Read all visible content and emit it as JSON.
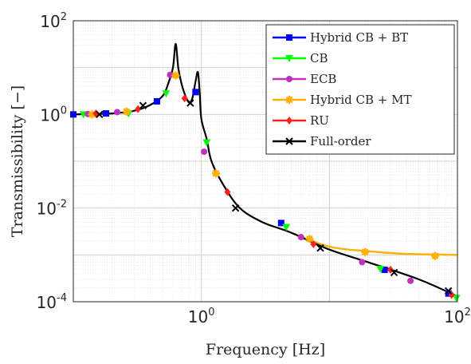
{
  "chart_data": {
    "type": "line",
    "title": "",
    "xlabel": "Frequency [Hz]",
    "ylabel": "Transmissibility [−]",
    "xscale": "log",
    "yscale": "log",
    "xlim": [
      0.1,
      100
    ],
    "ylim": [
      0.0001,
      100
    ],
    "grid": true,
    "minor_grid": true,
    "legend_position": "top-right",
    "x_ticks": [
      {
        "value": 1,
        "base": "10",
        "exp": "0"
      },
      {
        "value": 100,
        "base": "10",
        "exp": "2"
      }
    ],
    "y_ticks": [
      {
        "value": 0.0001,
        "base": "10",
        "exp": "-4"
      },
      {
        "value": 0.01,
        "base": "10",
        "exp": "-2"
      },
      {
        "value": 1,
        "base": "10",
        "exp": "0"
      },
      {
        "value": 100,
        "base": "10",
        "exp": "2"
      }
    ],
    "series": [
      {
        "name": "Hybrid CB + BT",
        "color": "#0000ff",
        "marker": "square",
        "markers": [
          [
            0.1,
            1.0
          ],
          [
            0.18,
            1.05
          ],
          [
            0.45,
            1.9
          ],
          [
            0.9,
            3.0
          ],
          [
            4.2,
            0.0048
          ],
          [
            27,
            0.00048
          ],
          [
            85,
            0.00015
          ]
        ]
      },
      {
        "name": "CB",
        "color": "#00ff00",
        "marker": "triangle-down",
        "markers": [
          [
            0.12,
            1.0
          ],
          [
            0.27,
            1.05
          ],
          [
            0.53,
            2.8
          ],
          [
            1.1,
            0.25
          ],
          [
            4.6,
            0.0039
          ],
          [
            25,
            0.0005
          ],
          [
            98,
            0.00012
          ]
        ]
      },
      {
        "name": "ECB",
        "color": "#c030c0",
        "marker": "circle",
        "markers": [
          [
            0.13,
            1.02
          ],
          [
            0.22,
            1.12
          ],
          [
            0.57,
            7.0
          ],
          [
            1.05,
            0.16
          ],
          [
            6.0,
            0.0024
          ],
          [
            18,
            0.0007
          ],
          [
            43,
            0.00028
          ]
        ]
      },
      {
        "name": "Hybrid CB + MT",
        "color": "#ffb000",
        "marker": "asterisk",
        "markers": [
          [
            0.14,
            1.0
          ],
          [
            0.26,
            1.15
          ],
          [
            0.63,
            6.8
          ],
          [
            1.3,
            0.055
          ],
          [
            7.0,
            0.0022
          ],
          [
            19,
            0.00115
          ],
          [
            67,
            0.00095
          ]
        ]
      },
      {
        "name": "RU",
        "color": "#ff2020",
        "marker": "diamond",
        "markers": [
          [
            0.15,
            1.05
          ],
          [
            0.32,
            1.3
          ],
          [
            0.74,
            2.2
          ],
          [
            1.6,
            0.022
          ],
          [
            7.5,
            0.0017
          ],
          [
            30,
            0.00048
          ],
          [
            90,
            0.00014
          ]
        ]
      },
      {
        "name": "Full-order",
        "color": "#000000",
        "marker": "x",
        "markers": [
          [
            0.16,
            1.0
          ],
          [
            0.35,
            1.55
          ],
          [
            0.82,
            1.75
          ],
          [
            1.85,
            0.01
          ],
          [
            8.5,
            0.0014
          ],
          [
            32,
            0.00042
          ],
          [
            85,
            0.00017
          ]
        ]
      }
    ],
    "curves": {
      "Full-order": [
        [
          0.1,
          1.0
        ],
        [
          0.2,
          1.05
        ],
        [
          0.3,
          1.2
        ],
        [
          0.4,
          1.6
        ],
        [
          0.5,
          2.5
        ],
        [
          0.55,
          4.5
        ],
        [
          0.6,
          10
        ],
        [
          0.63,
          32
        ],
        [
          0.66,
          10
        ],
        [
          0.7,
          4.5
        ],
        [
          0.75,
          2.5
        ],
        [
          0.8,
          1.8
        ],
        [
          0.85,
          2.2
        ],
        [
          0.9,
          5
        ],
        [
          0.94,
          8
        ],
        [
          0.97,
          3
        ],
        [
          1.0,
          0.8
        ],
        [
          1.1,
          0.3
        ],
        [
          1.2,
          0.1
        ],
        [
          1.5,
          0.03
        ],
        [
          2,
          0.01
        ],
        [
          3,
          0.005
        ],
        [
          5,
          0.003
        ],
        [
          10,
          0.0013
        ],
        [
          20,
          0.0007
        ],
        [
          50,
          0.0003
        ],
        [
          100,
          0.00013
        ]
      ],
      "Hybrid CB + MT": [
        [
          5,
          0.003
        ],
        [
          10,
          0.0015
        ],
        [
          20,
          0.0012
        ],
        [
          40,
          0.00105
        ],
        [
          100,
          0.001
        ]
      ]
    }
  }
}
